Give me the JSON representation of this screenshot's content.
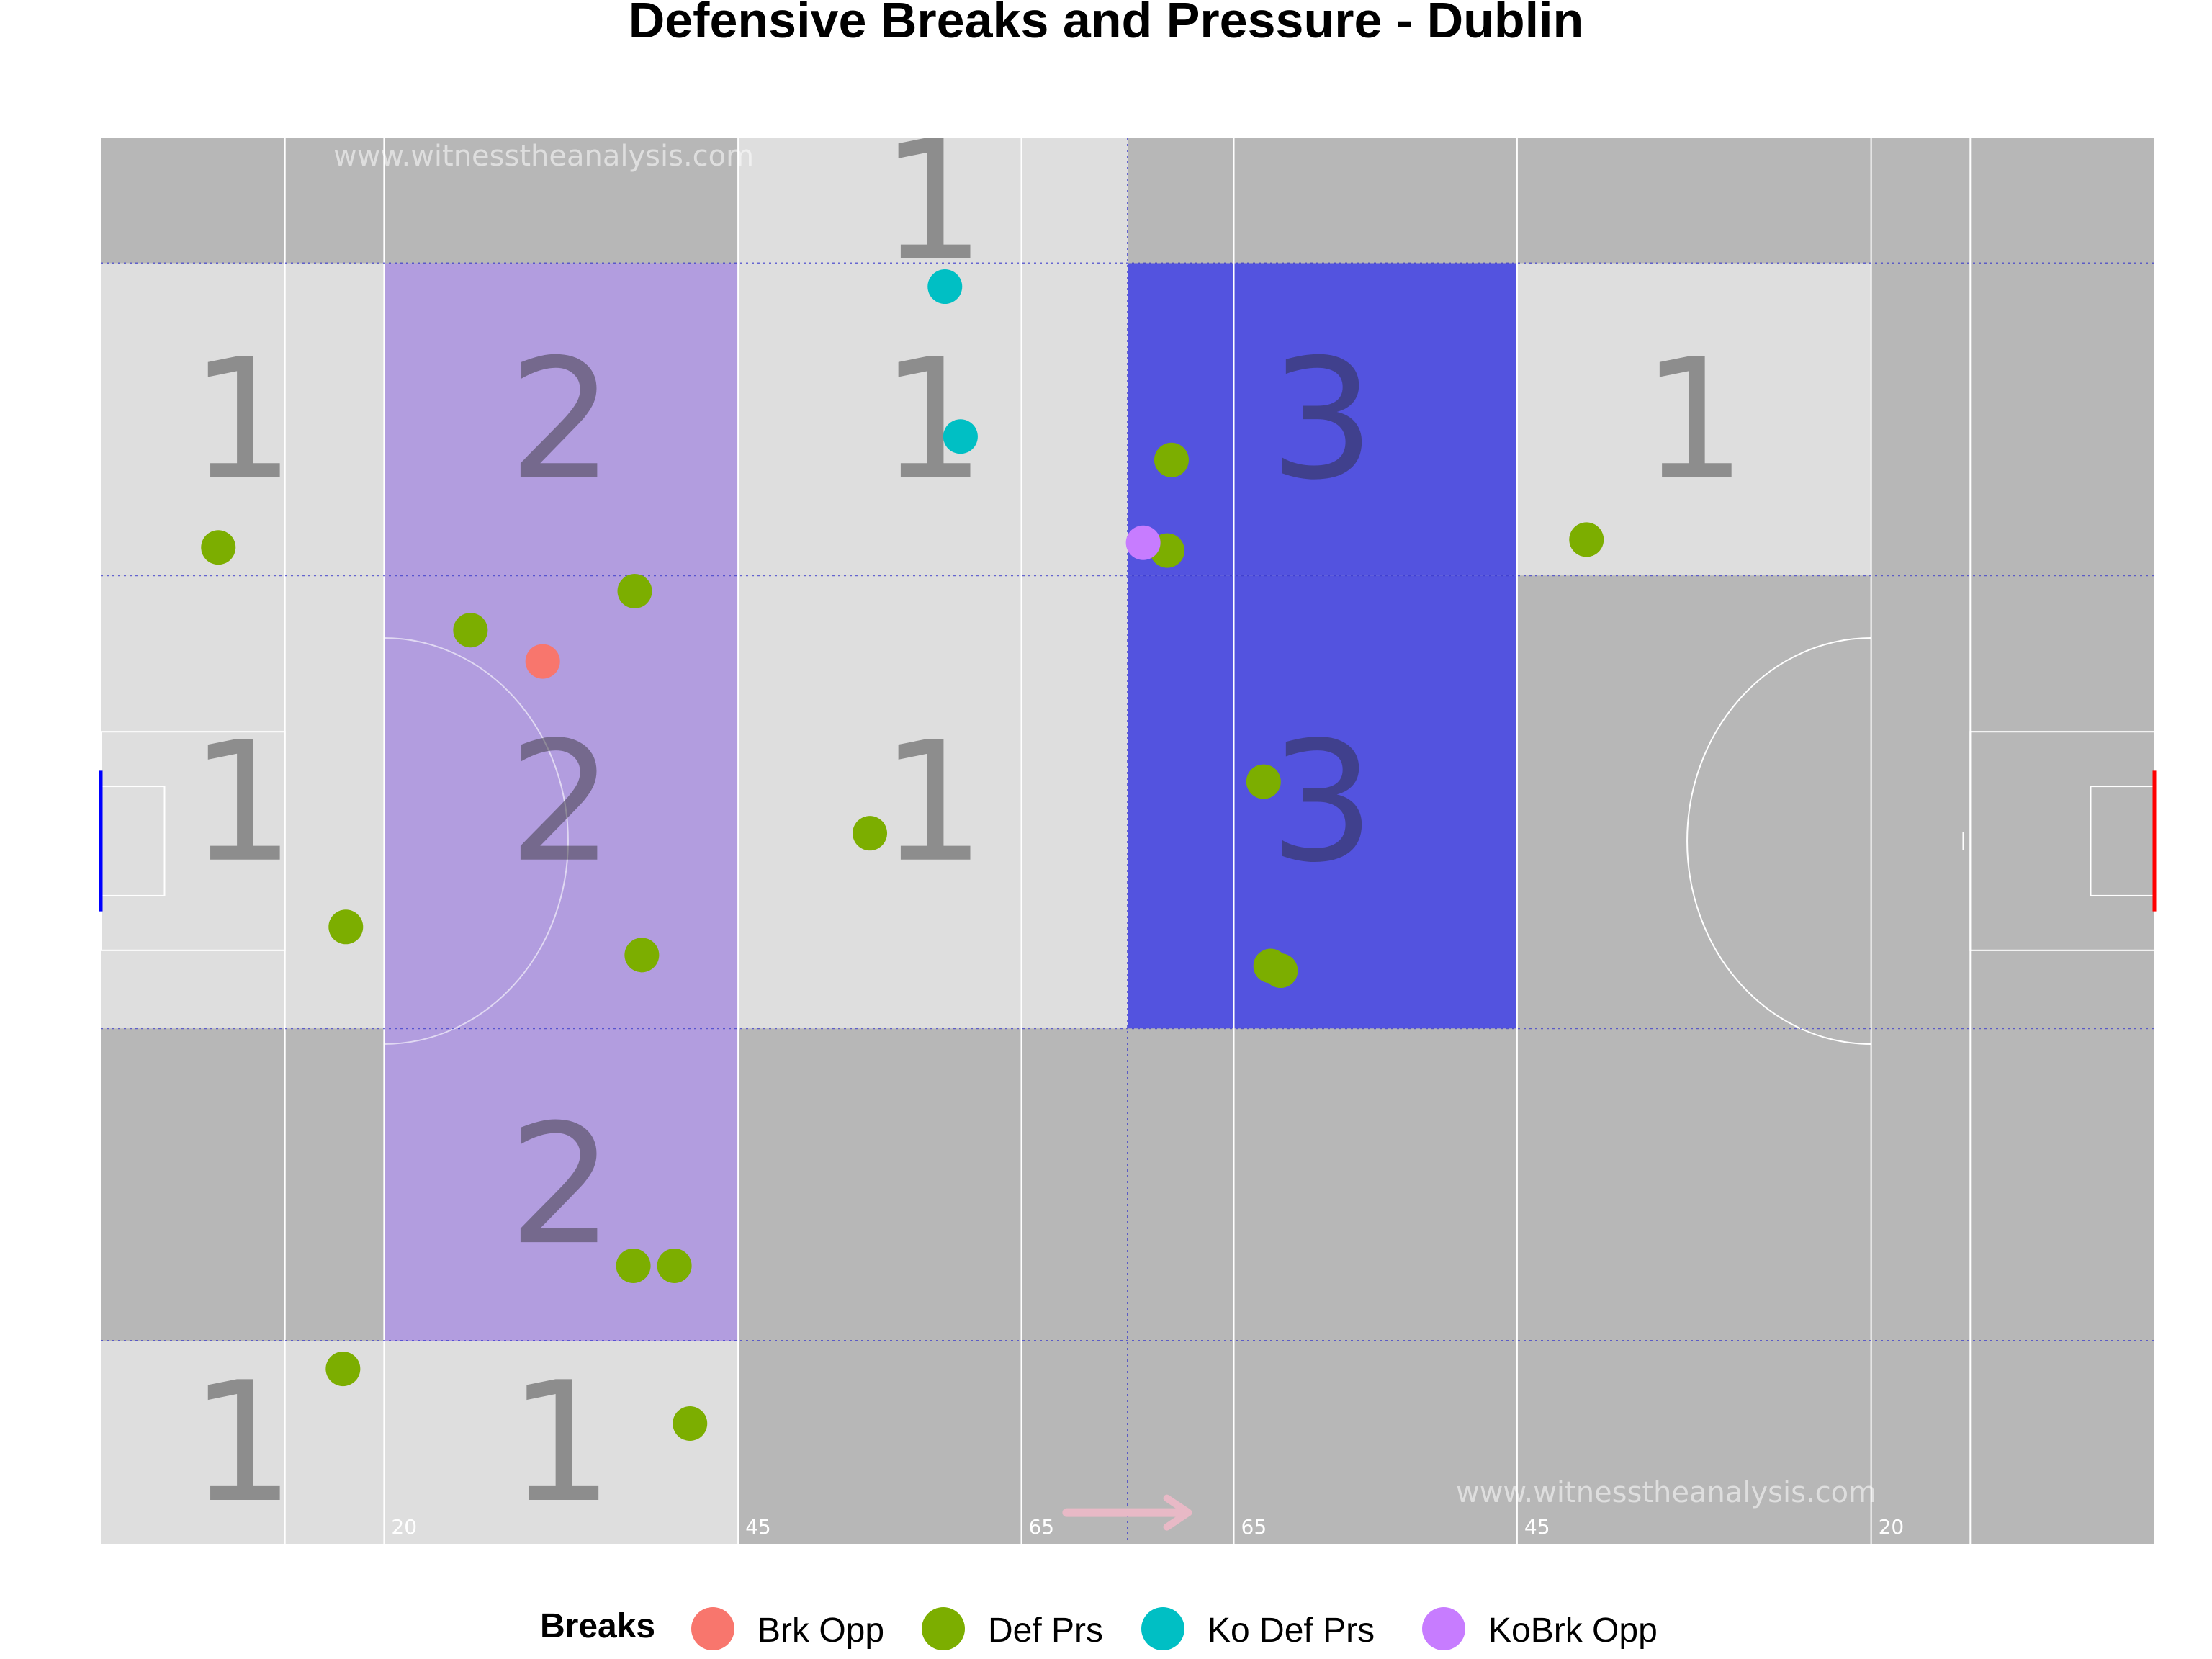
{
  "chart_data": {
    "type": "scatter",
    "title": "Defensive Breaks and Pressure - Dublin",
    "watermark": "www.witnesstheanalysis.com",
    "x_axis_markers": [
      "20",
      "45",
      "65",
      "65",
      "45",
      "20"
    ],
    "pitch_length": 145,
    "pitch_width": 90,
    "xlim": [
      0,
      145
    ],
    "ylim": [
      0,
      90
    ],
    "attack_direction": "right",
    "colors": {
      "pitch_base": "#b7b7b7",
      "zone_neutral": "#dedede",
      "zone_2": "#b29ddf",
      "zone_3": "#5353df",
      "pitch_lines": "#ffffff",
      "grid_lines": "#3333cc",
      "count_text": "#2a2a2a",
      "arrow": "#e8b9c6",
      "left_goal": "#0000ff",
      "right_goal": "#ff0000"
    },
    "zone_x_edges": [
      0,
      20,
      45,
      72.5,
      100,
      125,
      145
    ],
    "zone_y_edges": [
      0,
      13,
      33,
      62,
      82,
      90
    ],
    "zones": [
      {
        "x": [
          0,
          20
        ],
        "y": [
          0,
          13
        ],
        "count": 1
      },
      {
        "x": [
          20,
          45
        ],
        "y": [
          0,
          13
        ],
        "count": 1
      },
      {
        "x": [
          20,
          45
        ],
        "y": [
          13,
          33
        ],
        "count": 2
      },
      {
        "x": [
          0,
          20
        ],
        "y": [
          33,
          62
        ],
        "count": 1
      },
      {
        "x": [
          20,
          45
        ],
        "y": [
          33,
          62
        ],
        "count": 2
      },
      {
        "x": [
          45,
          72.5
        ],
        "y": [
          33,
          62
        ],
        "count": 1
      },
      {
        "x": [
          72.5,
          100
        ],
        "y": [
          33,
          62
        ],
        "count": 3
      },
      {
        "x": [
          0,
          20
        ],
        "y": [
          62,
          82
        ],
        "count": 1
      },
      {
        "x": [
          20,
          45
        ],
        "y": [
          62,
          82
        ],
        "count": 2
      },
      {
        "x": [
          45,
          72.5
        ],
        "y": [
          62,
          82
        ],
        "count": 1
      },
      {
        "x": [
          72.5,
          100
        ],
        "y": [
          62,
          82
        ],
        "count": 3
      },
      {
        "x": [
          100,
          125
        ],
        "y": [
          62,
          82
        ],
        "count": 1
      },
      {
        "x": [
          45,
          72.5
        ],
        "y": [
          82,
          90
        ],
        "count": 1
      }
    ],
    "series": [
      {
        "name": "Brk Opp",
        "color": "#f8766d",
        "points": [
          [
            31.2,
            56.5
          ]
        ]
      },
      {
        "name": "Def Prs",
        "color": "#7cae00",
        "points": [
          [
            8.3,
            63.8
          ],
          [
            26.1,
            58.5
          ],
          [
            37.7,
            61.0
          ],
          [
            17.3,
            39.5
          ],
          [
            38.2,
            37.7
          ],
          [
            37.6,
            17.8
          ],
          [
            40.5,
            17.8
          ],
          [
            17.1,
            11.2
          ],
          [
            41.6,
            7.7
          ],
          [
            54.3,
            45.5
          ],
          [
            75.6,
            69.4
          ],
          [
            75.3,
            63.6
          ],
          [
            82.1,
            48.8
          ],
          [
            82.6,
            37.0
          ],
          [
            83.3,
            36.7
          ],
          [
            104.9,
            64.3
          ]
        ]
      },
      {
        "name": "Ko Def Prs",
        "color": "#00bfc4",
        "points": [
          [
            59.6,
            80.5
          ],
          [
            60.7,
            70.9
          ]
        ]
      },
      {
        "name": "KoBrk Opp",
        "color": "#c77cff",
        "points": [
          [
            73.6,
            64.1
          ]
        ]
      }
    ],
    "legend": {
      "title": "Breaks",
      "position": "bottom"
    },
    "grid": false
  }
}
